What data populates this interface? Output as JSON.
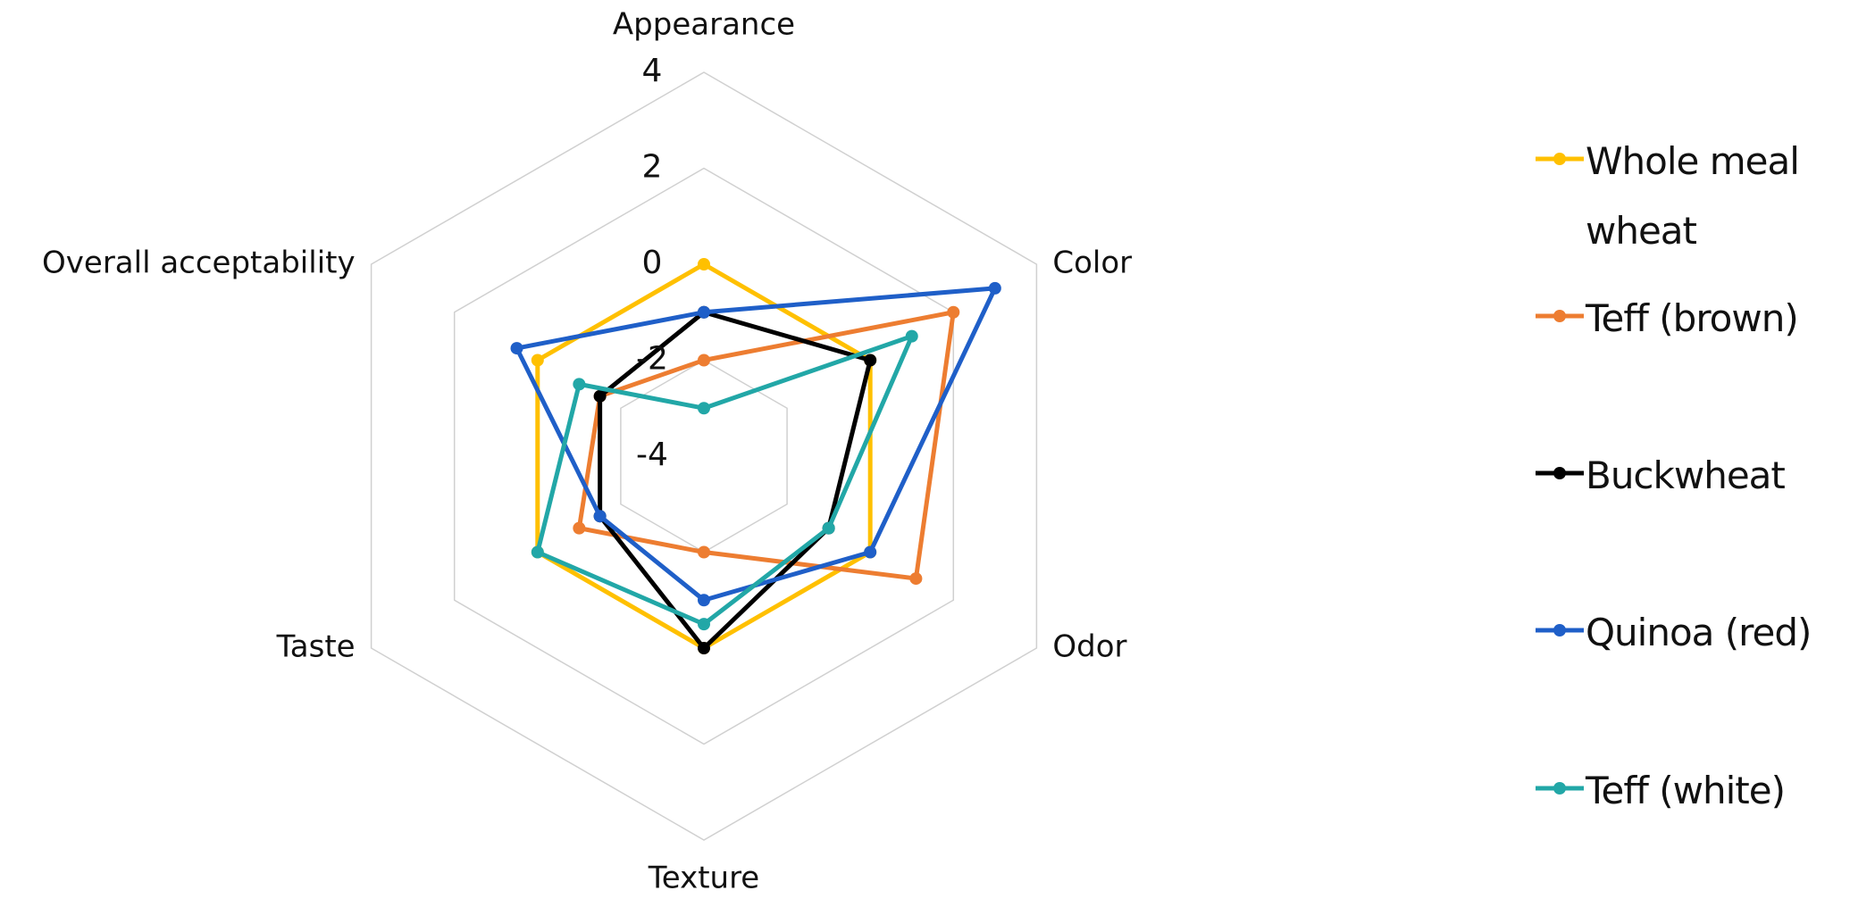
{
  "chart_data": {
    "type": "radar",
    "categories": [
      "Appearance",
      "Color",
      "Odor",
      "Texture",
      "Taste",
      "Overall acceptability"
    ],
    "ylim": [
      -4,
      4
    ],
    "yticks": [
      -4,
      -2,
      0,
      2,
      4
    ],
    "grid": true,
    "series": [
      {
        "name": "Whole meal wheat",
        "color": "#ffc000",
        "values": [
          0,
          0,
          0,
          0,
          0,
          0
        ]
      },
      {
        "name": "Teff (brown)",
        "color": "#ed7d31",
        "values": [
          -2,
          2,
          1.1,
          -2,
          -1,
          -1.5
        ]
      },
      {
        "name": "Buckwheat",
        "color": "#000000",
        "values": [
          -1,
          0,
          -1,
          0,
          -1.5,
          -1.5
        ]
      },
      {
        "name": "Quinoa (red)",
        "color": "#1f5fc8",
        "values": [
          -1,
          3,
          0,
          -1,
          -1.5,
          0.5
        ]
      },
      {
        "name": "Teff (white)",
        "color": "#22a7a7",
        "values": [
          -3,
          1,
          -1,
          -0.5,
          0,
          -1
        ]
      }
    ]
  }
}
